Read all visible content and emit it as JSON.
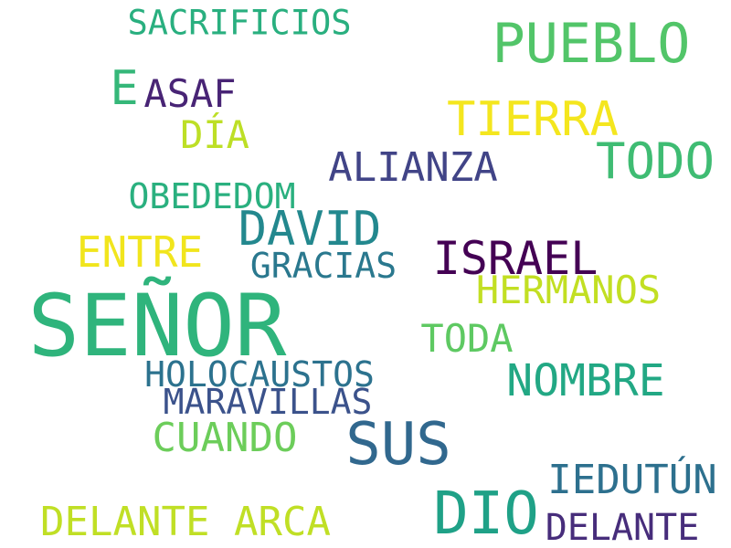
{
  "words": [
    {
      "text": "SACRIFICIOS",
      "color": "#29af7f"
    },
    {
      "text": "PUEBLO",
      "color": "#52c569"
    },
    {
      "text": "E",
      "color": "#35b779"
    },
    {
      "text": "ASAF",
      "color": "#482475"
    },
    {
      "text": "TIERRA",
      "color": "#f4e61e"
    },
    {
      "text": "DÍA",
      "color": "#bddf26"
    },
    {
      "text": "TODO",
      "color": "#3fbc73"
    },
    {
      "text": "ALIANZA",
      "color": "#414487"
    },
    {
      "text": "OBEDEDOM",
      "color": "#2ab07f"
    },
    {
      "text": "DAVID",
      "color": "#23888e"
    },
    {
      "text": "ENTRE",
      "color": "#f1e51d"
    },
    {
      "text": "GRACIAS",
      "color": "#2a788e"
    },
    {
      "text": "ISRAEL",
      "color": "#440154"
    },
    {
      "text": "HERMANOS",
      "color": "#c2df23"
    },
    {
      "text": "SEÑOR",
      "color": "#2fb47c"
    },
    {
      "text": "TODA",
      "color": "#5ec962"
    },
    {
      "text": "HOLOCAUSTOS",
      "color": "#2c728e"
    },
    {
      "text": "NOMBRE",
      "color": "#22a884"
    },
    {
      "text": "MARAVILLAS",
      "color": "#3b528b"
    },
    {
      "text": "SUS",
      "color": "#31688e"
    },
    {
      "text": "CUANDO",
      "color": "#6ccd5a"
    },
    {
      "text": "IEDUTÚN",
      "color": "#2d708e"
    },
    {
      "text": "DIO",
      "color": "#1fa187"
    },
    {
      "text": "DELANTE ARCA",
      "color": "#c0df25"
    },
    {
      "text": "DELANTE",
      "color": "#472d7b"
    }
  ]
}
